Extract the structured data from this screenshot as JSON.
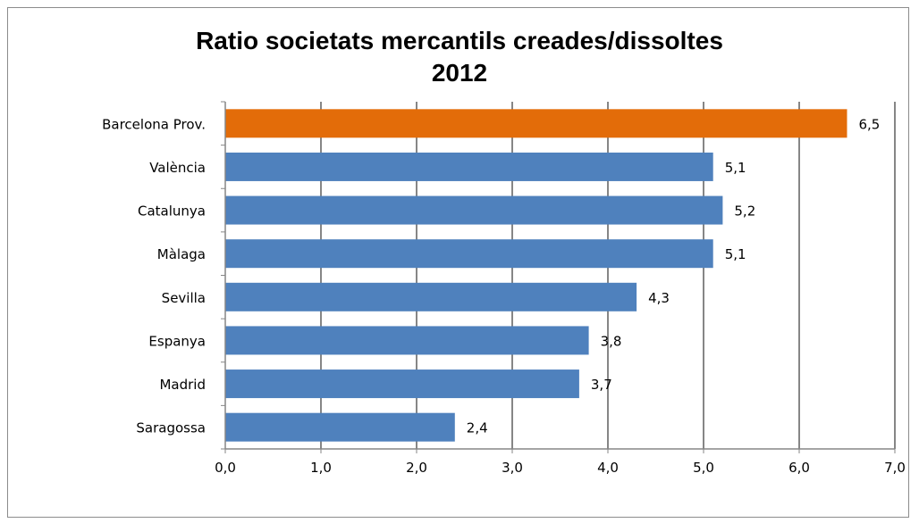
{
  "chart_data": {
    "type": "bar",
    "orientation": "horizontal",
    "title": "Ratio societats mercantils creades/dissoltes",
    "subtitle": "2012",
    "categories": [
      "Barcelona Prov.",
      "València",
      "Catalunya",
      "Màlaga",
      "Sevilla",
      "Espanya",
      "Madrid",
      "Saragossa"
    ],
    "values": [
      6.5,
      5.1,
      5.2,
      5.1,
      4.3,
      3.8,
      3.7,
      2.4
    ],
    "value_labels": [
      "6,5",
      "5,1",
      "5,2",
      "5,1",
      "4,3",
      "3,8",
      "3,7",
      "2,4"
    ],
    "xlim": [
      0,
      7
    ],
    "xticks": [
      "0,0",
      "1,0",
      "2,0",
      "3,0",
      "4,0",
      "5,0",
      "6,0",
      "7,0"
    ],
    "grid": true,
    "colors": {
      "default_bar": "#4f81bd",
      "highlight_bar": "#e36c09",
      "grid": "#868686",
      "axis": "#868686"
    },
    "highlight_category": "Barcelona Prov."
  }
}
